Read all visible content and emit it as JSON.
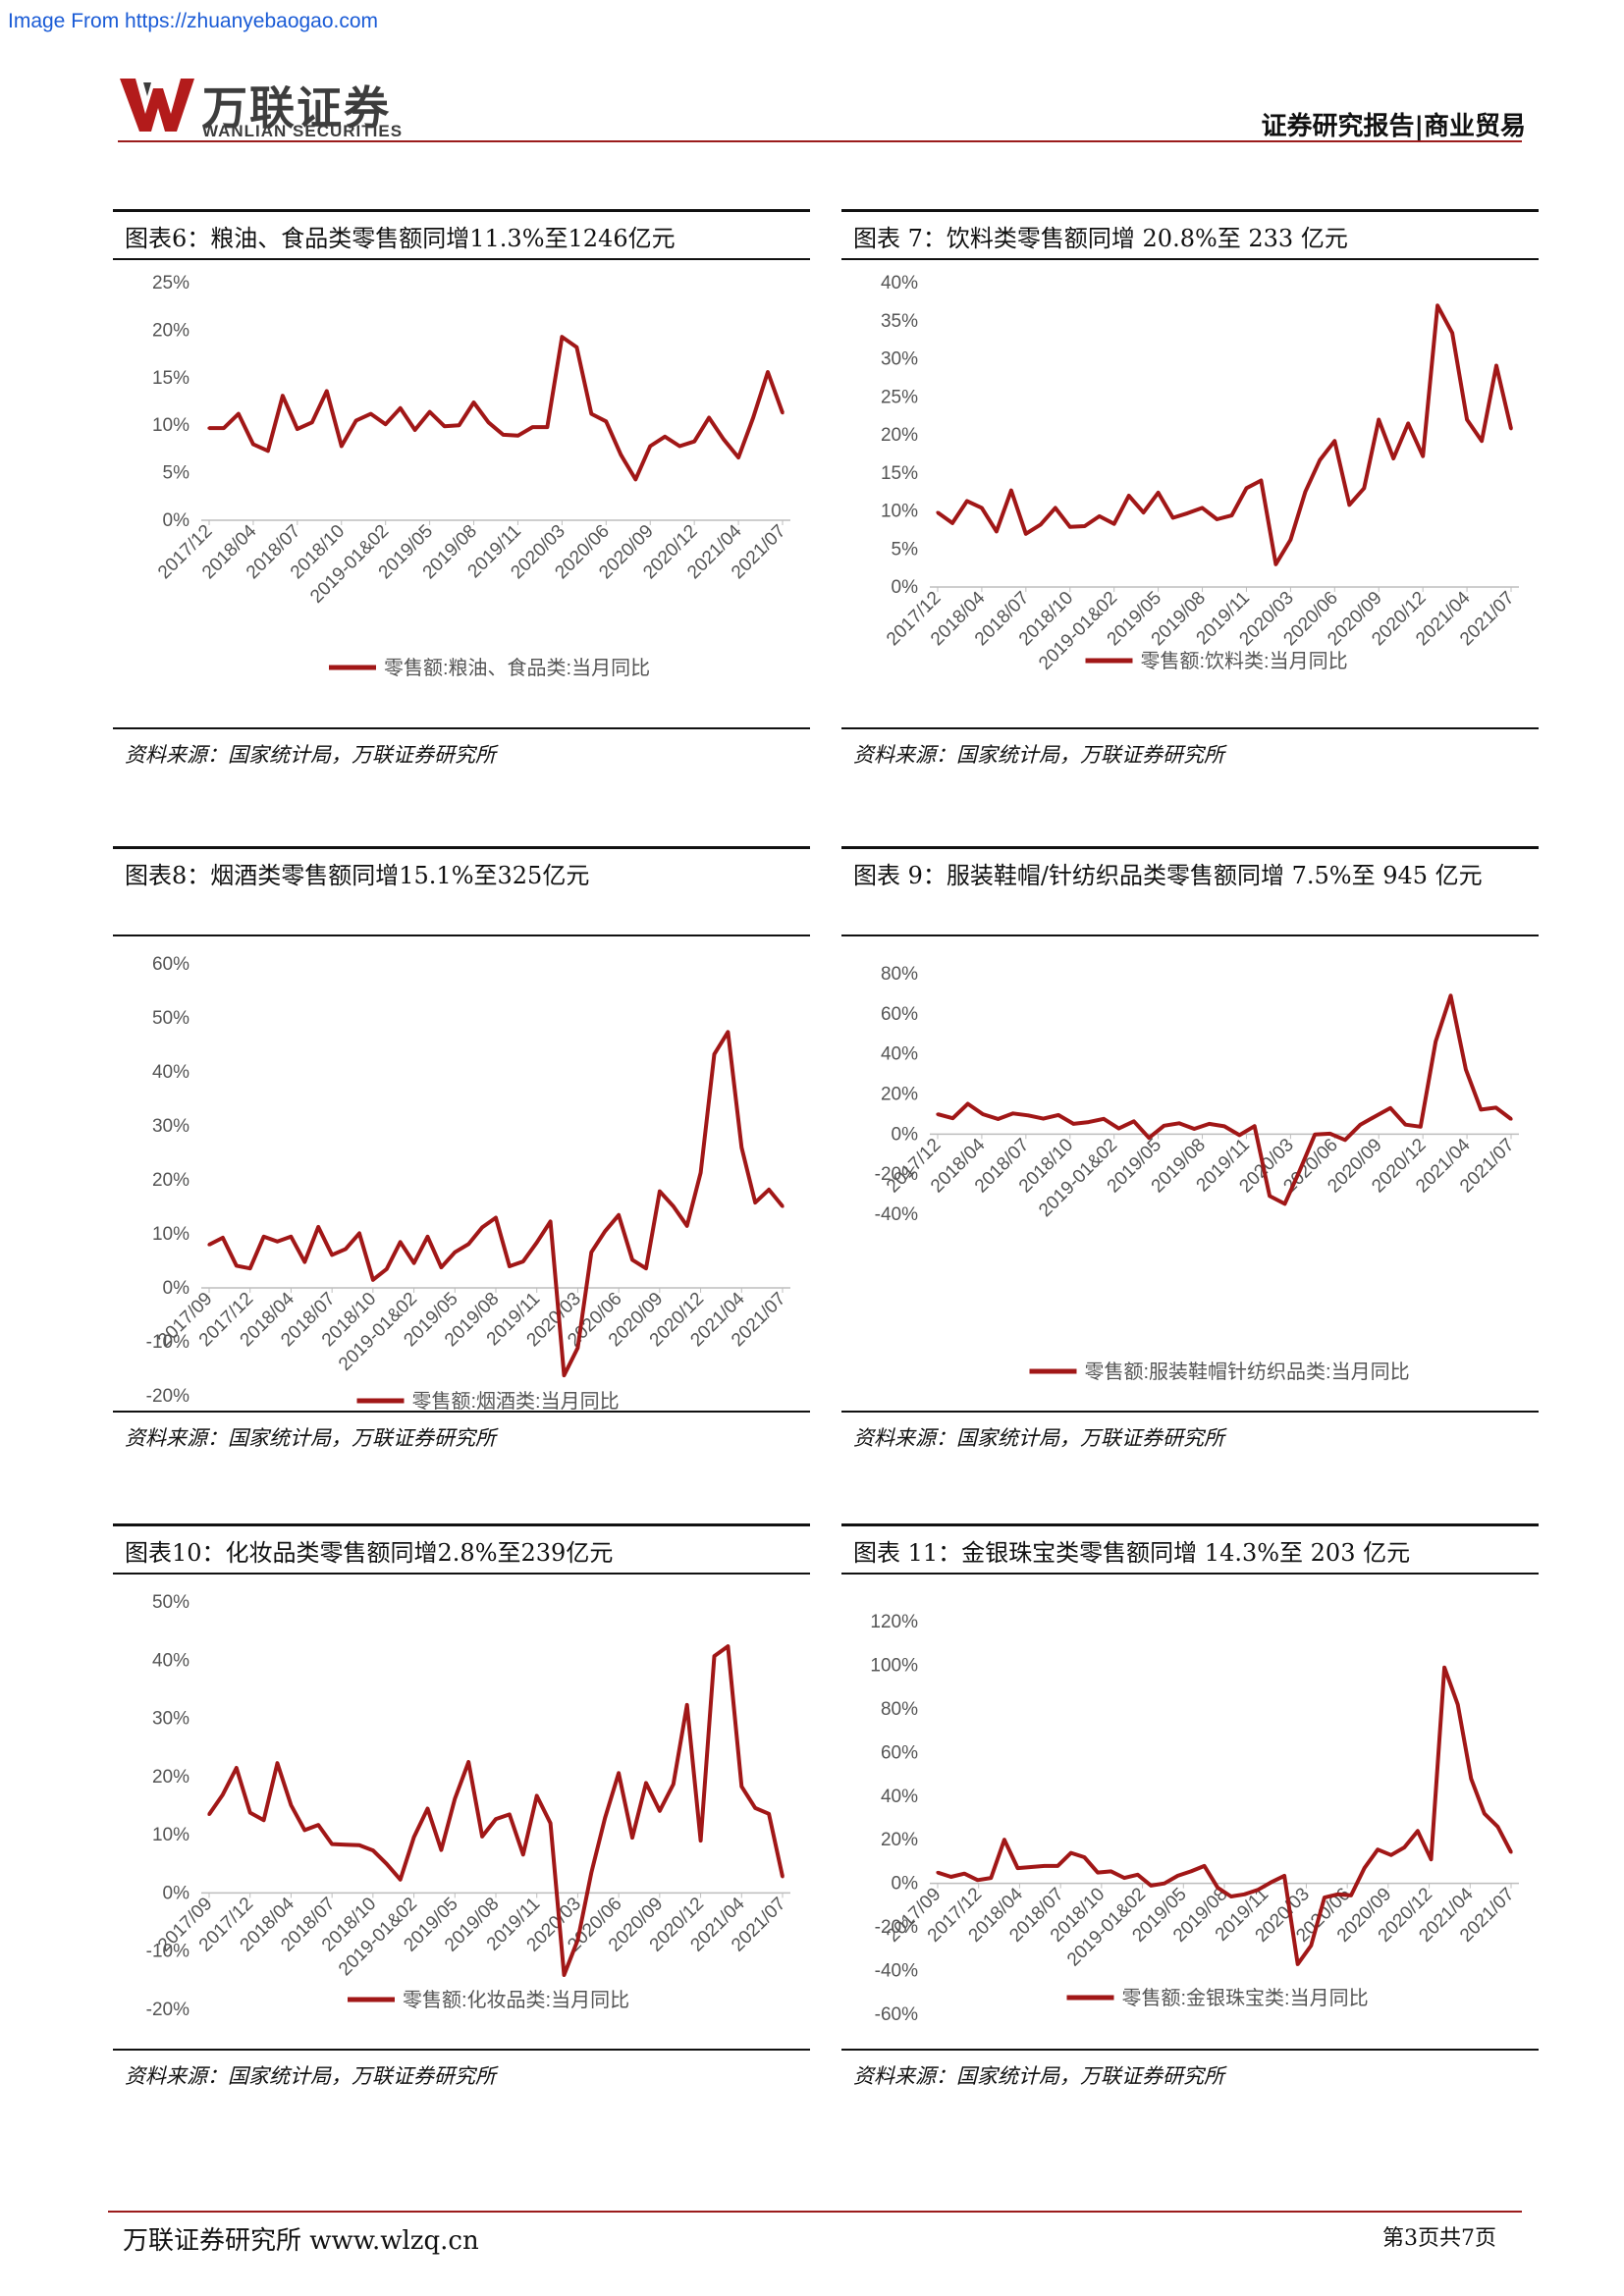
{
  "watermark": "Image From https://zhuanyebaogao.com",
  "header": {
    "logo_cn": "万联证券",
    "logo_en": "WANLIAN SECURITIES",
    "section": "证券研究报告|商业贸易",
    "brand_color": "#9b1c1c"
  },
  "footer": {
    "left": "万联证券研究所 www.wlzq.cn",
    "right": "第3页共7页"
  },
  "charts": [
    {
      "title": "图表6：粮油、食品类零售额同增11.3%至1246亿元",
      "source": "资料来源：国家统计局，万联证券研究所",
      "legend": "零售额:粮油、食品类:当月同比"
    },
    {
      "title": "图表 7：饮料类零售额同增 20.8%至 233 亿元",
      "source": "资料来源：国家统计局，万联证券研究所",
      "legend": "零售额:饮料类:当月同比"
    },
    {
      "title": "图表8：烟酒类零售额同增15.1%至325亿元",
      "source": "资料来源：国家统计局，万联证券研究所",
      "legend": "零售额:烟酒类:当月同比"
    },
    {
      "title": "图表 9：服装鞋帽/针纺织品类零售额同增 7.5%至 945 亿元",
      "source": "资料来源：国家统计局，万联证券研究所",
      "legend": "零售额:服装鞋帽针纺织品类:当月同比"
    },
    {
      "title": "图表10：化妆品类零售额同增2.8%至239亿元",
      "source": "资料来源：国家统计局，万联证券研究所",
      "legend": "零售额:化妆品类:当月同比"
    },
    {
      "title": "图表 11：金银珠宝类零售额同增 14.3%至 203 亿元",
      "source": "资料来源：国家统计局，万联证券研究所",
      "legend": "零售额:金银珠宝类:当月同比"
    }
  ],
  "chart_data": [
    {
      "type": "line",
      "series_color": "#a11717",
      "ylim": [
        0,
        25
      ],
      "yticks": [
        "0%",
        "5%",
        "10%",
        "15%",
        "20%",
        "25%"
      ],
      "tick_labels": [
        "2017/12",
        "2018/04",
        "2018/07",
        "2018/10",
        "2019-01&02",
        "2019/05",
        "2019/08",
        "2019/11",
        "2020/03",
        "2020/06",
        "2020/09",
        "2020/12",
        "2021/04",
        "2021/07"
      ],
      "series": [
        {
          "name": "零售额:粮油、食品类:当月同比",
          "values": [
            9.7,
            9.7,
            11.2,
            8.0,
            7.3,
            13.1,
            9.6,
            10.3,
            13.6,
            7.8,
            10.5,
            11.2,
            10.1,
            11.8,
            9.5,
            11.4,
            9.9,
            10.0,
            12.4,
            10.3,
            9.0,
            8.9,
            9.8,
            9.8,
            19.3,
            18.2,
            11.2,
            10.4,
            6.9,
            4.3,
            7.8,
            8.8,
            7.8,
            8.3,
            10.8,
            8.5,
            6.6,
            10.8,
            15.6,
            11.3
          ]
        }
      ]
    },
    {
      "type": "line",
      "series_color": "#a11717",
      "ylim": [
        0,
        40
      ],
      "yticks": [
        "0%",
        "5%",
        "10%",
        "15%",
        "20%",
        "25%",
        "30%",
        "35%",
        "40%"
      ],
      "tick_labels": [
        "2017/12",
        "2018/04",
        "2018/07",
        "2018/10",
        "2019-01&02",
        "2019/05",
        "2019/08",
        "2019/11",
        "2020/03",
        "2020/06",
        "2020/09",
        "2020/12",
        "2021/04",
        "2021/07"
      ],
      "series": [
        {
          "name": "零售额:饮料类:当月同比",
          "values": [
            9.8,
            8.4,
            11.3,
            10.4,
            7.3,
            12.7,
            7.0,
            8.2,
            10.4,
            7.9,
            8.0,
            9.3,
            8.3,
            12.0,
            9.8,
            12.4,
            9.1,
            9.7,
            10.4,
            8.9,
            9.4,
            13.0,
            14.0,
            3.0,
            6.2,
            12.5,
            16.7,
            19.2,
            10.8,
            13.0,
            22.0,
            16.9,
            21.5,
            17.2,
            37.0,
            33.4,
            22.0,
            19.2,
            29.1,
            20.8
          ]
        }
      ]
    },
    {
      "type": "line",
      "series_color": "#a11717",
      "ylim": [
        -20,
        60
      ],
      "yticks": [
        "-20%",
        "-10%",
        "0%",
        "10%",
        "20%",
        "30%",
        "40%",
        "50%",
        "60%"
      ],
      "tick_labels": [
        "2017/09",
        "2017/12",
        "2018/04",
        "2018/07",
        "2018/10",
        "2019-01&02",
        "2019/05",
        "2019/08",
        "2019/11",
        "2020/03",
        "2020/06",
        "2020/09",
        "2020/12",
        "2021/04",
        "2021/07"
      ],
      "series": [
        {
          "name": "零售额:烟酒类:当月同比",
          "values": [
            8.0,
            9.3,
            4.1,
            3.6,
            9.5,
            8.6,
            9.5,
            4.8,
            11.3,
            6.1,
            7.2,
            10.1,
            1.5,
            3.5,
            8.5,
            4.6,
            9.5,
            3.8,
            6.6,
            8.1,
            11.2,
            13.0,
            4.0,
            4.9,
            8.4,
            12.3,
            -16.2,
            -11.1,
            6.6,
            10.5,
            13.5,
            5.2,
            3.6,
            17.9,
            15.1,
            11.5,
            21.3,
            43.3,
            47.4,
            26.0,
            15.8,
            18.2,
            15.1
          ]
        }
      ]
    },
    {
      "type": "line",
      "series_color": "#a11717",
      "ylim": [
        -40,
        80
      ],
      "yticks": [
        "-40%",
        "-20%",
        "0%",
        "20%",
        "40%",
        "60%",
        "80%"
      ],
      "tick_labels": [
        "2017/12",
        "2018/04",
        "2018/07",
        "2018/10",
        "2019-01&02",
        "2019/05",
        "2019/08",
        "2019/11",
        "2020/03",
        "2020/06",
        "2020/09",
        "2020/12",
        "2021/04",
        "2021/07"
      ],
      "series": [
        {
          "name": "零售额:服装鞋帽针纺织品类:当月同比",
          "values": [
            9.9,
            7.9,
            15.1,
            9.9,
            7.5,
            10.3,
            9.3,
            7.7,
            9.5,
            5.1,
            6.0,
            7.6,
            2.8,
            6.4,
            -1.9,
            4.2,
            5.4,
            2.6,
            5.1,
            3.9,
            -0.5,
            4.0,
            -30.9,
            -34.8,
            -18.1,
            -0.2,
            0.2,
            -2.9,
            4.6,
            8.9,
            13.0,
            4.7,
            3.7,
            46.2,
            69.1,
            32.3,
            12.2,
            13.2,
            7.5
          ]
        }
      ]
    },
    {
      "type": "line",
      "series_color": "#a11717",
      "ylim": [
        -20,
        50
      ],
      "yticks": [
        "-20%",
        "-10%",
        "0%",
        "10%",
        "20%",
        "30%",
        "40%",
        "50%"
      ],
      "tick_labels": [
        "2017/09",
        "2017/12",
        "2018/04",
        "2018/07",
        "2018/10",
        "2019-01&02",
        "2019/05",
        "2019/08",
        "2019/11",
        "2020/03",
        "2020/06",
        "2020/09",
        "2020/12",
        "2021/04",
        "2021/07"
      ],
      "series": [
        {
          "name": "零售额:化妆品类:当月同比",
          "values": [
            13.5,
            16.9,
            21.5,
            13.8,
            12.5,
            22.3,
            15.1,
            10.8,
            11.7,
            8.4,
            8.3,
            8.2,
            7.3,
            5.0,
            2.3,
            9.6,
            14.5,
            7.4,
            16.2,
            22.5,
            9.7,
            12.7,
            13.5,
            6.6,
            16.7,
            12.0,
            -14.1,
            -8.1,
            3.5,
            12.9,
            20.6,
            9.5,
            18.9,
            14.1,
            18.7,
            32.3,
            9.0,
            40.7,
            42.4,
            18.3,
            14.6,
            13.6,
            2.8
          ]
        }
      ]
    },
    {
      "type": "line",
      "series_color": "#a11717",
      "ylim": [
        -60,
        120
      ],
      "yticks": [
        "-60%",
        "-40%",
        "-20%",
        "0%",
        "20%",
        "40%",
        "60%",
        "80%",
        "100%",
        "120%"
      ],
      "tick_labels": [
        "2017/09",
        "2017/12",
        "2018/04",
        "2018/07",
        "2018/10",
        "2019-01&02",
        "2019/05",
        "2019/08",
        "2019/11",
        "2020/03",
        "2020/06",
        "2020/09",
        "2020/12",
        "2021/04",
        "2021/07"
      ],
      "series": [
        {
          "name": "零售额:金银珠宝类:当月同比",
          "values": [
            5.0,
            3.0,
            4.5,
            1.5,
            2.5,
            20.0,
            7.0,
            7.5,
            8.0,
            8.0,
            14.0,
            12.0,
            5.0,
            5.5,
            2.5,
            4.0,
            -1.0,
            0.0,
            3.5,
            5.5,
            8.0,
            -2.0,
            -6.0,
            -5.0,
            -3.0,
            0.5,
            3.5,
            -37.0,
            -28.5,
            -6.5,
            -5.0,
            -5.5,
            7.0,
            15.5,
            13.0,
            16.5,
            24.0,
            11.0,
            99.0,
            82.0,
            48.0,
            32.0,
            26.0,
            14.3
          ]
        }
      ]
    }
  ]
}
